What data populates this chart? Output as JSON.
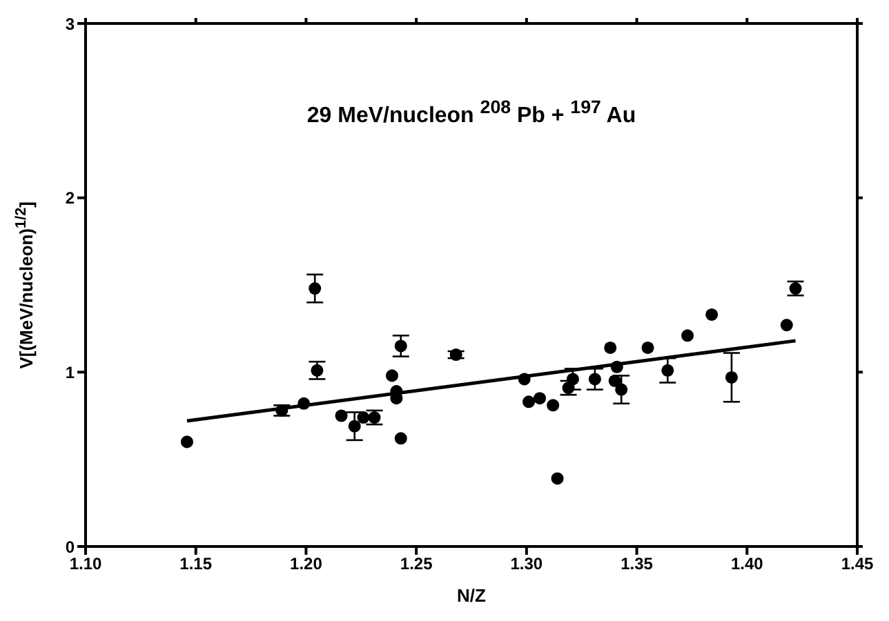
{
  "chart_data": {
    "type": "scatter",
    "title": "29 MeV/nucleon $^{208}$ Pb + $^{197}$ Au",
    "xlabel": "N/Z",
    "ylabel": "V[(MeV/nucleon)$^{1/2}$]",
    "xlim": [
      1.1,
      1.45
    ],
    "xticks": [
      {
        "value": 1.1,
        "label": "1.10"
      },
      {
        "value": 1.15,
        "label": "1.15"
      },
      {
        "value": 1.2,
        "label": "1.20"
      },
      {
        "value": 1.25,
        "label": "1.25"
      },
      {
        "value": 1.3,
        "label": "1.30"
      },
      {
        "value": 1.35,
        "label": "1.35"
      },
      {
        "value": 1.4,
        "label": "1.40"
      },
      {
        "value": 1.45,
        "label": "1.45"
      }
    ],
    "ylim": [
      0,
      3
    ],
    "yticks": [
      0,
      1,
      2,
      3
    ],
    "series": [
      {
        "color": "#000000",
        "marker": "circle",
        "x": [
          1.146,
          1.189,
          1.199,
          1.205,
          1.204,
          1.216,
          1.222,
          1.226,
          1.231,
          1.239,
          1.241,
          1.241,
          1.243,
          1.243,
          1.268,
          1.299,
          1.301,
          1.306,
          1.312,
          1.314,
          1.319,
          1.321,
          1.331,
          1.338,
          1.34,
          1.341,
          1.343,
          1.355,
          1.364,
          1.373,
          1.384,
          1.393,
          1.418,
          1.422
        ],
        "values": [
          0.6,
          0.78,
          0.82,
          1.01,
          1.48,
          0.75,
          0.69,
          0.74,
          0.74,
          0.98,
          0.89,
          0.85,
          1.15,
          0.62,
          1.1,
          0.96,
          0.83,
          0.85,
          0.81,
          0.39,
          0.91,
          0.96,
          0.96,
          1.14,
          0.95,
          1.03,
          0.9,
          1.14,
          1.01,
          1.21,
          1.33,
          0.97,
          1.27,
          1.48
        ],
        "errors": [
          null,
          0.03,
          null,
          0.05,
          0.08,
          null,
          0.08,
          null,
          0.04,
          null,
          null,
          null,
          0.06,
          null,
          0.02,
          null,
          null,
          null,
          null,
          null,
          0.04,
          0.06,
          0.06,
          null,
          null,
          null,
          0.08,
          null,
          0.07,
          null,
          null,
          0.14,
          null,
          0.04
        ]
      },
      {
        "type": "line",
        "marker": "none",
        "color": "#000000",
        "x": [
          1.146,
          1.422
        ],
        "values": [
          0.72,
          1.18
        ]
      }
    ]
  }
}
